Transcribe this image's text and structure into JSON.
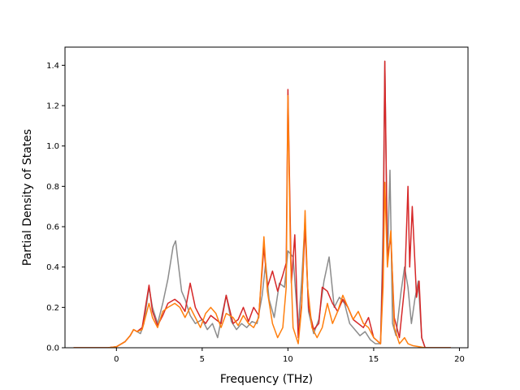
{
  "chart_data": {
    "type": "line",
    "title": "",
    "xlabel": "Frequency (THz)",
    "ylabel": "Partial Density of States",
    "xlim": [
      -3.0,
      20.5
    ],
    "ylim": [
      0.0,
      1.49
    ],
    "xticks": [
      0,
      5,
      10,
      15,
      20
    ],
    "xtick_labels": [
      "0",
      "5",
      "10",
      "15",
      "20"
    ],
    "yticks": [
      0.0,
      0.2,
      0.4,
      0.6,
      0.8,
      1.0,
      1.2,
      1.4
    ],
    "ytick_labels": [
      "0.0",
      "0.2",
      "0.4",
      "0.6",
      "0.8",
      "1.0",
      "1.2",
      "1.4"
    ],
    "grid": false,
    "legend": "none",
    "series": [
      {
        "color": "#8c8c8c",
        "points": [
          [
            -2.5,
            0
          ],
          [
            -0.5,
            0
          ],
          [
            0.0,
            0.005
          ],
          [
            0.5,
            0.03
          ],
          [
            0.8,
            0.06
          ],
          [
            1.0,
            0.09
          ],
          [
            1.2,
            0.08
          ],
          [
            1.4,
            0.07
          ],
          [
            1.6,
            0.12
          ],
          [
            1.9,
            0.3
          ],
          [
            2.1,
            0.2
          ],
          [
            2.4,
            0.12
          ],
          [
            2.7,
            0.22
          ],
          [
            3.0,
            0.34
          ],
          [
            3.3,
            0.5
          ],
          [
            3.45,
            0.53
          ],
          [
            3.6,
            0.42
          ],
          [
            3.8,
            0.28
          ],
          [
            4.0,
            0.24
          ],
          [
            4.3,
            0.16
          ],
          [
            4.6,
            0.12
          ],
          [
            5.0,
            0.14
          ],
          [
            5.3,
            0.09
          ],
          [
            5.6,
            0.12
          ],
          [
            5.9,
            0.05
          ],
          [
            6.2,
            0.18
          ],
          [
            6.4,
            0.26
          ],
          [
            6.7,
            0.13
          ],
          [
            7.0,
            0.09
          ],
          [
            7.3,
            0.12
          ],
          [
            7.6,
            0.1
          ],
          [
            7.9,
            0.13
          ],
          [
            8.2,
            0.12
          ],
          [
            8.5,
            0.26
          ],
          [
            8.7,
            0.42
          ],
          [
            8.9,
            0.24
          ],
          [
            9.2,
            0.15
          ],
          [
            9.5,
            0.32
          ],
          [
            9.8,
            0.3
          ],
          [
            10.0,
            0.48
          ],
          [
            10.3,
            0.45
          ],
          [
            10.6,
            0.1
          ],
          [
            10.8,
            0.33
          ],
          [
            11.0,
            0.64
          ],
          [
            11.2,
            0.18
          ],
          [
            11.5,
            0.07
          ],
          [
            11.8,
            0.14
          ],
          [
            12.1,
            0.33
          ],
          [
            12.4,
            0.45
          ],
          [
            12.7,
            0.2
          ],
          [
            13.0,
            0.25
          ],
          [
            13.3,
            0.22
          ],
          [
            13.6,
            0.12
          ],
          [
            13.9,
            0.09
          ],
          [
            14.2,
            0.06
          ],
          [
            14.5,
            0.08
          ],
          [
            14.8,
            0.04
          ],
          [
            15.1,
            0.02
          ],
          [
            15.4,
            0.02
          ],
          [
            15.55,
            0.6
          ],
          [
            15.65,
            1.42
          ],
          [
            15.8,
            0.42
          ],
          [
            15.95,
            0.88
          ],
          [
            16.1,
            0.12
          ],
          [
            16.3,
            0.06
          ],
          [
            16.6,
            0.28
          ],
          [
            16.8,
            0.4
          ],
          [
            17.0,
            0.3
          ],
          [
            17.2,
            0.12
          ],
          [
            17.4,
            0.24
          ],
          [
            17.6,
            0.33
          ],
          [
            17.8,
            0.05
          ],
          [
            18.0,
            0
          ],
          [
            19.5,
            0
          ]
        ]
      },
      {
        "color": "#d62728",
        "points": [
          [
            -2.5,
            0
          ],
          [
            -0.5,
            0
          ],
          [
            0.0,
            0.005
          ],
          [
            0.5,
            0.03
          ],
          [
            0.8,
            0.06
          ],
          [
            1.0,
            0.09
          ],
          [
            1.2,
            0.08
          ],
          [
            1.5,
            0.1
          ],
          [
            1.9,
            0.31
          ],
          [
            2.1,
            0.18
          ],
          [
            2.4,
            0.11
          ],
          [
            2.7,
            0.16
          ],
          [
            3.0,
            0.22
          ],
          [
            3.4,
            0.24
          ],
          [
            3.7,
            0.22
          ],
          [
            4.0,
            0.18
          ],
          [
            4.3,
            0.32
          ],
          [
            4.6,
            0.2
          ],
          [
            4.9,
            0.15
          ],
          [
            5.2,
            0.12
          ],
          [
            5.5,
            0.16
          ],
          [
            5.8,
            0.14
          ],
          [
            6.1,
            0.12
          ],
          [
            6.4,
            0.26
          ],
          [
            6.8,
            0.12
          ],
          [
            7.1,
            0.14
          ],
          [
            7.4,
            0.2
          ],
          [
            7.7,
            0.13
          ],
          [
            8.0,
            0.2
          ],
          [
            8.3,
            0.16
          ],
          [
            8.6,
            0.5
          ],
          [
            8.8,
            0.3
          ],
          [
            9.1,
            0.38
          ],
          [
            9.4,
            0.28
          ],
          [
            9.7,
            0.36
          ],
          [
            9.9,
            0.42
          ],
          [
            10.0,
            1.28
          ],
          [
            10.2,
            0.32
          ],
          [
            10.4,
            0.56
          ],
          [
            10.6,
            0.05
          ],
          [
            10.8,
            0.22
          ],
          [
            11.0,
            0.6
          ],
          [
            11.2,
            0.2
          ],
          [
            11.5,
            0.09
          ],
          [
            11.8,
            0.12
          ],
          [
            12.0,
            0.3
          ],
          [
            12.3,
            0.28
          ],
          [
            12.6,
            0.22
          ],
          [
            12.9,
            0.18
          ],
          [
            13.2,
            0.24
          ],
          [
            13.5,
            0.2
          ],
          [
            13.8,
            0.14
          ],
          [
            14.1,
            0.12
          ],
          [
            14.4,
            0.1
          ],
          [
            14.7,
            0.15
          ],
          [
            15.0,
            0.05
          ],
          [
            15.4,
            0.02
          ],
          [
            15.55,
            0.45
          ],
          [
            15.65,
            1.42
          ],
          [
            15.8,
            0.45
          ],
          [
            16.0,
            0.55
          ],
          [
            16.2,
            0.15
          ],
          [
            16.5,
            0.05
          ],
          [
            16.8,
            0.3
          ],
          [
            17.0,
            0.8
          ],
          [
            17.1,
            0.4
          ],
          [
            17.25,
            0.7
          ],
          [
            17.5,
            0.25
          ],
          [
            17.65,
            0.33
          ],
          [
            17.8,
            0.05
          ],
          [
            18.0,
            0
          ],
          [
            19.5,
            0
          ]
        ]
      },
      {
        "color": "#ff7f0e",
        "points": [
          [
            -2.5,
            0
          ],
          [
            -0.5,
            0
          ],
          [
            0.0,
            0.005
          ],
          [
            0.5,
            0.03
          ],
          [
            0.8,
            0.06
          ],
          [
            1.0,
            0.09
          ],
          [
            1.2,
            0.08
          ],
          [
            1.5,
            0.09
          ],
          [
            1.9,
            0.22
          ],
          [
            2.1,
            0.15
          ],
          [
            2.4,
            0.1
          ],
          [
            2.7,
            0.18
          ],
          [
            3.0,
            0.2
          ],
          [
            3.4,
            0.22
          ],
          [
            3.7,
            0.2
          ],
          [
            4.0,
            0.15
          ],
          [
            4.3,
            0.2
          ],
          [
            4.6,
            0.15
          ],
          [
            4.9,
            0.1
          ],
          [
            5.2,
            0.17
          ],
          [
            5.5,
            0.2
          ],
          [
            5.8,
            0.17
          ],
          [
            6.1,
            0.1
          ],
          [
            6.4,
            0.17
          ],
          [
            6.8,
            0.15
          ],
          [
            7.1,
            0.11
          ],
          [
            7.4,
            0.16
          ],
          [
            7.7,
            0.12
          ],
          [
            8.0,
            0.1
          ],
          [
            8.3,
            0.15
          ],
          [
            8.6,
            0.55
          ],
          [
            8.8,
            0.28
          ],
          [
            9.1,
            0.12
          ],
          [
            9.4,
            0.05
          ],
          [
            9.7,
            0.1
          ],
          [
            9.9,
            0.3
          ],
          [
            10.0,
            1.25
          ],
          [
            10.15,
            0.45
          ],
          [
            10.3,
            0.1
          ],
          [
            10.6,
            0.02
          ],
          [
            10.8,
            0.2
          ],
          [
            11.0,
            0.68
          ],
          [
            11.15,
            0.3
          ],
          [
            11.4,
            0.1
          ],
          [
            11.7,
            0.05
          ],
          [
            12.0,
            0.1
          ],
          [
            12.3,
            0.22
          ],
          [
            12.6,
            0.12
          ],
          [
            12.9,
            0.18
          ],
          [
            13.2,
            0.26
          ],
          [
            13.5,
            0.2
          ],
          [
            13.8,
            0.14
          ],
          [
            14.1,
            0.18
          ],
          [
            14.4,
            0.12
          ],
          [
            14.7,
            0.1
          ],
          [
            15.0,
            0.05
          ],
          [
            15.4,
            0.02
          ],
          [
            15.55,
            0.3
          ],
          [
            15.65,
            0.82
          ],
          [
            15.8,
            0.4
          ],
          [
            16.0,
            0.58
          ],
          [
            16.2,
            0.1
          ],
          [
            16.5,
            0.02
          ],
          [
            16.8,
            0.05
          ],
          [
            17.0,
            0.02
          ],
          [
            17.3,
            0.01
          ],
          [
            18.0,
            0
          ],
          [
            19.5,
            0
          ]
        ]
      }
    ]
  }
}
